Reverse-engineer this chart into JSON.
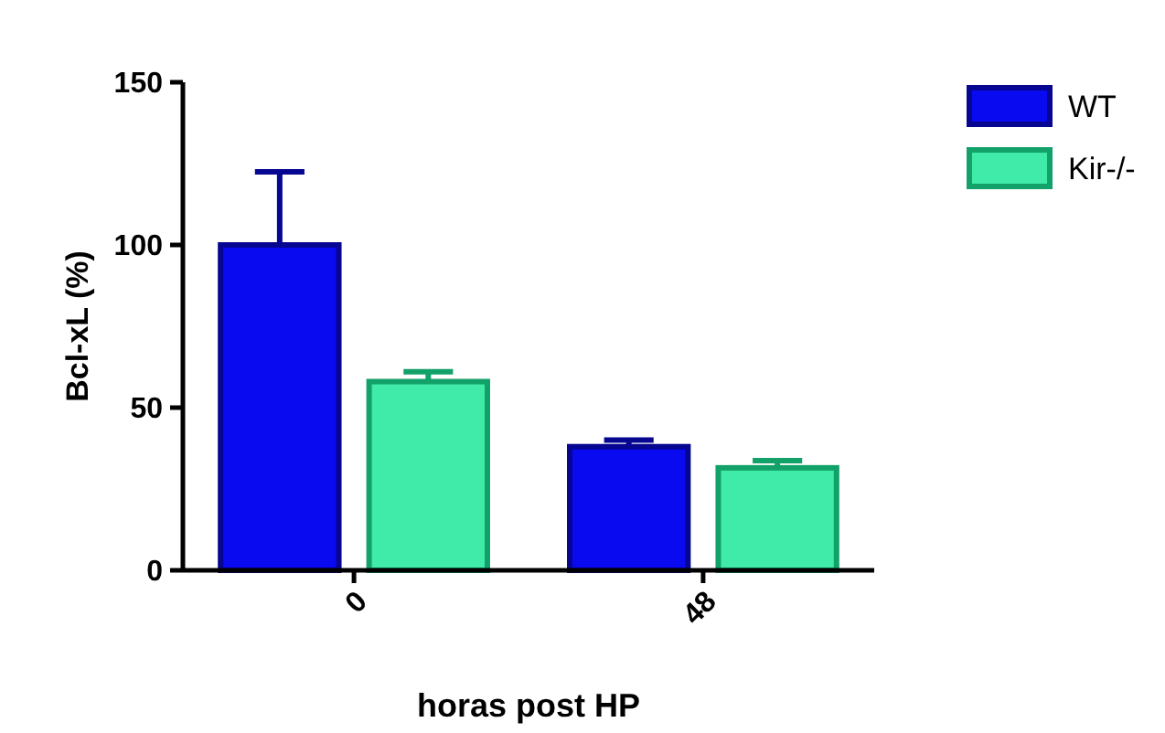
{
  "chart_data": {
    "type": "bar",
    "xlabel": "horas post HP",
    "ylabel": "Bcl-xL (%)",
    "categories": [
      "0",
      "48"
    ],
    "series": [
      {
        "name": "WT",
        "color": "#0a0af0",
        "values": [
          100,
          38
        ],
        "errors": [
          [
            100,
            122.5
          ],
          [
            38,
            40
          ]
        ]
      },
      {
        "name": "Kir-/-",
        "color": "#40eaa8",
        "values": [
          58,
          31.5
        ],
        "errors": [
          [
            58,
            61
          ],
          [
            31.5,
            33.7
          ]
        ]
      }
    ],
    "ylim": [
      0,
      150
    ],
    "yticks": [
      0,
      50,
      100,
      150
    ],
    "grid": false,
    "legend": "top right"
  }
}
